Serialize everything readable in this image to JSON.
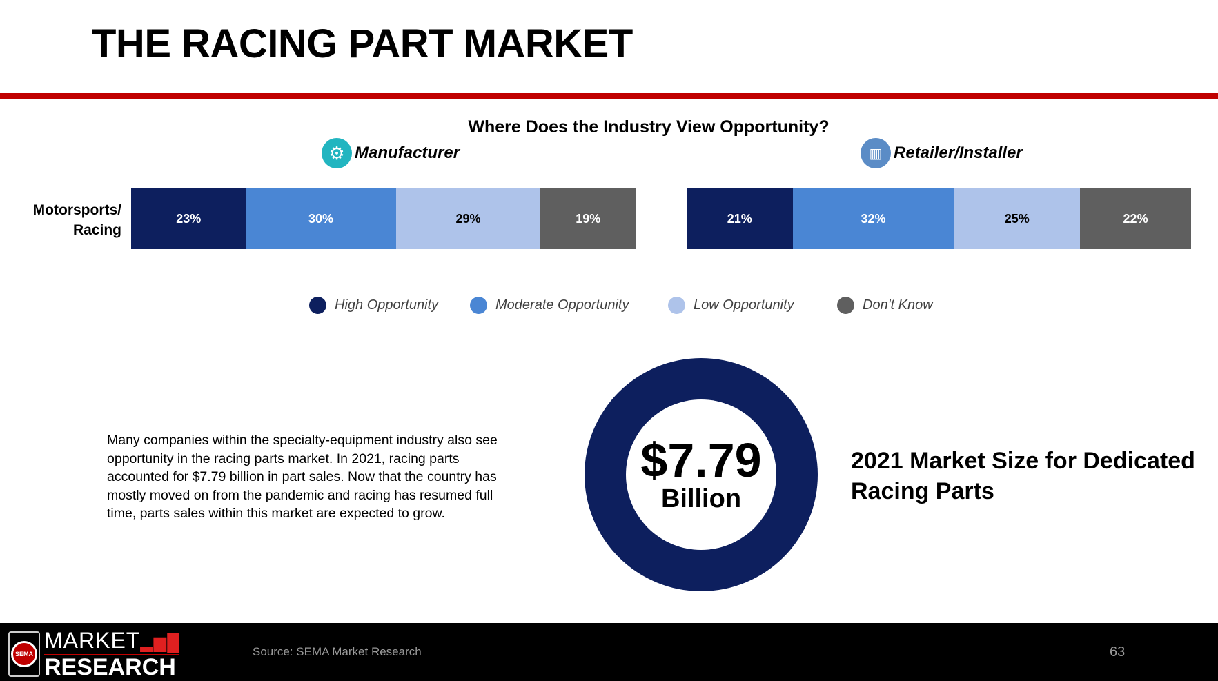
{
  "title": "THE RACING PART MARKET",
  "chart": {
    "title": "Where Does the Industry View Opportunity?",
    "row_label_line1": "Motorsports/",
    "row_label_line2": "Racing",
    "groups": [
      {
        "name": "Manufacturer",
        "icon": "gears-icon",
        "values": [
          "23%",
          "30%",
          "29%",
          "19%"
        ]
      },
      {
        "name": "Retailer/Installer",
        "icon": "storefront-icon",
        "values": [
          "21%",
          "32%",
          "25%",
          "22%"
        ]
      }
    ],
    "legend": [
      "High Opportunity",
      "Moderate Opportunity",
      "Low Opportunity",
      "Don't Know"
    ],
    "colors": [
      "#0d1f5e",
      "#4a86d4",
      "#aec3ea",
      "#5f5f5f"
    ]
  },
  "chart_data": {
    "type": "bar",
    "stacked": true,
    "title": "Where Does the Industry View Opportunity?",
    "categories": [
      "Manufacturer",
      "Retailer/Installer"
    ],
    "row": "Motorsports/Racing",
    "series": [
      {
        "name": "High Opportunity",
        "values": [
          23,
          21
        ]
      },
      {
        "name": "Moderate Opportunity",
        "values": [
          30,
          32
        ]
      },
      {
        "name": "Low Opportunity",
        "values": [
          29,
          25
        ]
      },
      {
        "name": "Don't Know",
        "values": [
          19,
          22
        ]
      }
    ],
    "legend_position": "bottom"
  },
  "paragraph": "Many companies within the specialty-equipment industry also see opportunity in the racing parts market. In 2021, racing parts accounted for $7.79 billion in part sales. Now that the country has mostly moved on from the pandemic and racing has resumed full time, parts sales within this market are expected to grow.",
  "market": {
    "value": "$7.79",
    "unit": "Billion",
    "label": "2021 Market Size for Dedicated Racing Parts"
  },
  "footer": {
    "logo_top": "MARKET",
    "logo_bottom": "RESEARCH",
    "seal": "SEMA",
    "source": "Source: SEMA Market Research",
    "page": "63"
  }
}
